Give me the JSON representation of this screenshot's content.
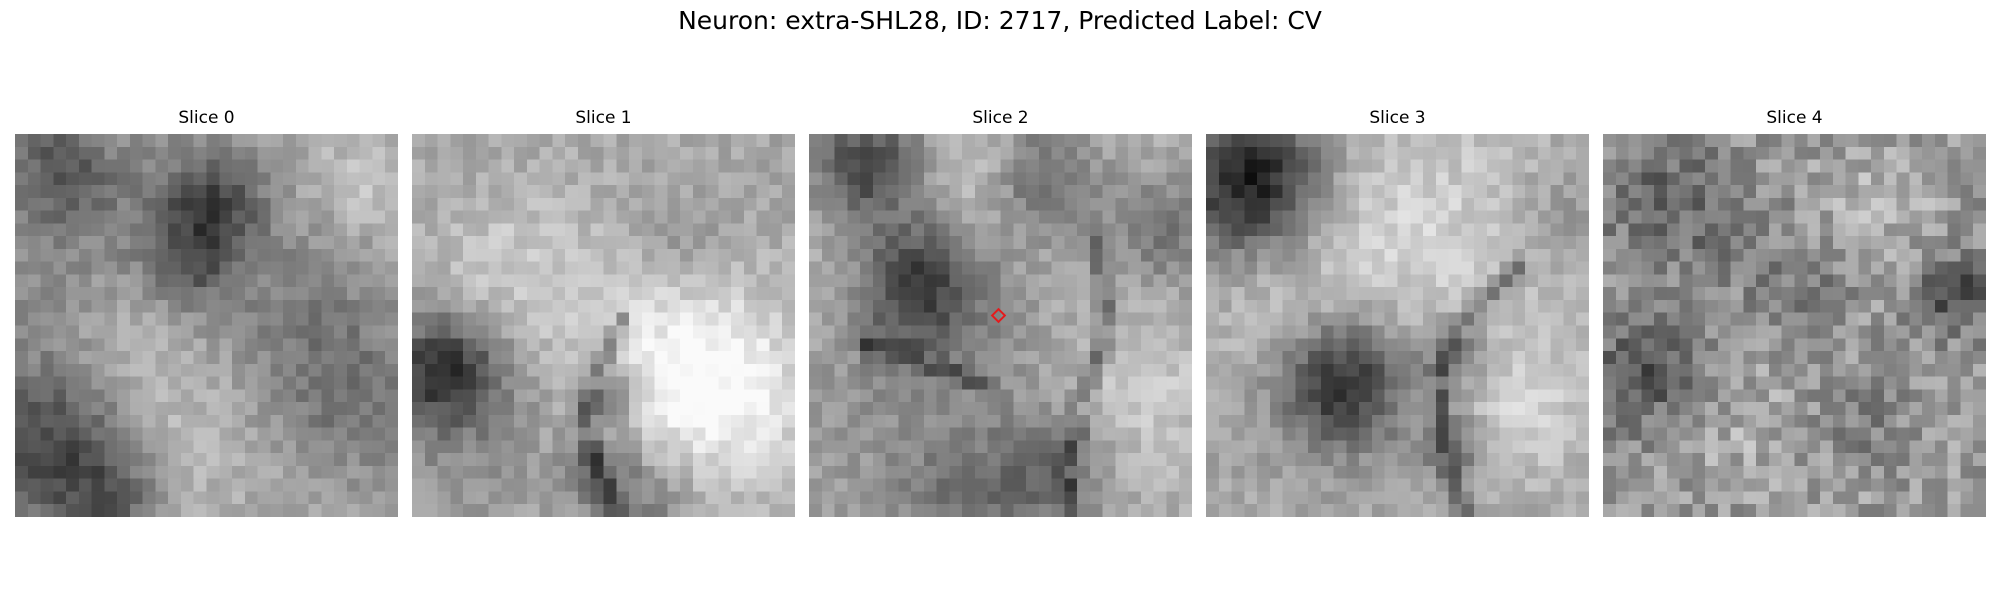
{
  "figure": {
    "title": "Neuron: extra-SHL28, ID: 2717, Predicted Label: CV"
  },
  "slices": [
    {
      "label": "Slice 0",
      "has_marker": false,
      "seed": 11
    },
    {
      "label": "Slice 1",
      "has_marker": false,
      "seed": 23
    },
    {
      "label": "Slice 2",
      "has_marker": true,
      "seed": 37
    },
    {
      "label": "Slice 3",
      "has_marker": false,
      "seed": 51
    },
    {
      "label": "Slice 4",
      "has_marker": false,
      "seed": 73
    }
  ],
  "colors": {
    "marker": "#e41a1c",
    "colormap": "gray"
  },
  "grid_cells": 30
}
